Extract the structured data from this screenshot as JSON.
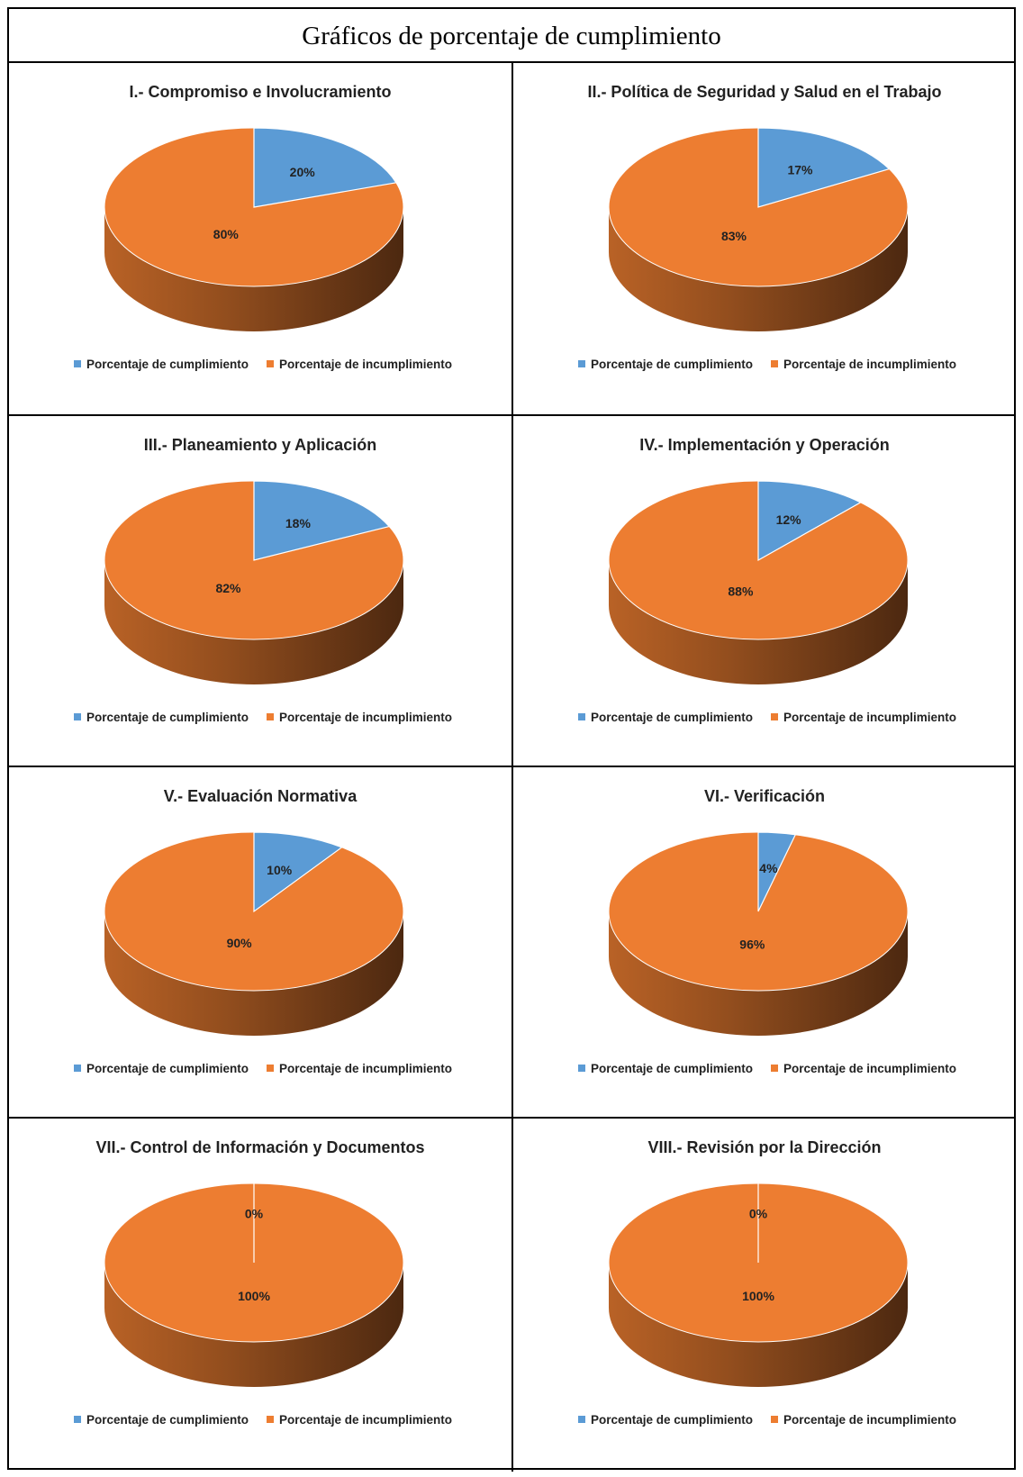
{
  "page_title": "Gráficos de porcentaje de cumplimiento",
  "colors": {
    "cumplimiento": "#5B9BD5",
    "incumplimiento": "#ED7D31"
  },
  "legend": {
    "cumplimiento": "Porcentaje de cumplimiento",
    "incumplimiento": "Porcentaje de incumplimiento"
  },
  "chart_data": [
    {
      "type": "pie",
      "title": "I.- Compromiso e Involucramiento",
      "categories": [
        "Porcentaje de cumplimiento",
        "Porcentaje de incumplimiento"
      ],
      "values": [
        20,
        80
      ],
      "labels": [
        "20%",
        "80%"
      ],
      "legend_position": "bottom"
    },
    {
      "type": "pie",
      "title": "II.- Política de Seguridad y Salud en el Trabajo",
      "categories": [
        "Porcentaje de cumplimiento",
        "Porcentaje de incumplimiento"
      ],
      "values": [
        17,
        83
      ],
      "labels": [
        "17%",
        "83%"
      ],
      "legend_position": "bottom"
    },
    {
      "type": "pie",
      "title": "III.- Planeamiento y Aplicación",
      "categories": [
        "Porcentaje de cumplimiento",
        "Porcentaje de incumplimiento"
      ],
      "values": [
        18,
        82
      ],
      "labels": [
        "18%",
        "82%"
      ],
      "legend_position": "bottom"
    },
    {
      "type": "pie",
      "title": "IV.- Implementación y Operación",
      "categories": [
        "Porcentaje de cumplimiento",
        "Porcentaje de incumplimiento"
      ],
      "values": [
        12,
        88
      ],
      "labels": [
        "12%",
        "88%"
      ],
      "legend_position": "bottom"
    },
    {
      "type": "pie",
      "title": "V.- Evaluación Normativa",
      "categories": [
        "Porcentaje de cumplimiento",
        "Porcentaje de incumplimiento"
      ],
      "values": [
        10,
        90
      ],
      "labels": [
        "10%",
        "90%"
      ],
      "legend_position": "bottom"
    },
    {
      "type": "pie",
      "title": "VI.- Verificación",
      "categories": [
        "Porcentaje de cumplimiento",
        "Porcentaje de incumplimiento"
      ],
      "values": [
        4,
        96
      ],
      "labels": [
        "4%",
        "96%"
      ],
      "legend_position": "bottom"
    },
    {
      "type": "pie",
      "title": "VII.- Control de Información y Documentos",
      "categories": [
        "Porcentaje de cumplimiento",
        "Porcentaje de incumplimiento"
      ],
      "values": [
        0,
        100
      ],
      "labels": [
        "0%",
        "100%"
      ],
      "legend_position": "bottom"
    },
    {
      "type": "pie",
      "title": "VIII.- Revisión por la Dirección",
      "categories": [
        "Porcentaje de cumplimiento",
        "Porcentaje de incumplimiento"
      ],
      "values": [
        0,
        100
      ],
      "labels": [
        "0%",
        "100%"
      ],
      "legend_position": "bottom"
    }
  ]
}
